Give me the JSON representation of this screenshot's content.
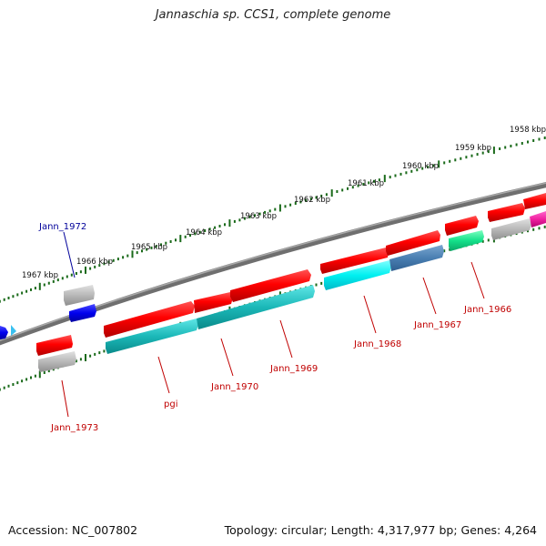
{
  "title": "Jannaschia sp. CCS1, complete genome",
  "footer": {
    "accession": "Accession: NC_007802",
    "summary": "Topology: circular; Length: 4,317,977 bp; Genes: 4,264"
  },
  "colors": {
    "backbone": "#7a7a7a",
    "tick": "#1a6a1a",
    "label_red": "#c00000",
    "label_blue": "#00009a"
  },
  "kbp_labels": [
    "1967 kbp",
    "1966 kbp",
    "1965 kbp",
    "1964 kbp",
    "1963 kbp",
    "1962 kbp",
    "1961 kbp",
    "1960 kbp",
    "1959 kbp",
    "1958 kbp"
  ],
  "genes": {
    "jann_1972": "Jann_1972",
    "jann_1973": "Jann_1973",
    "pgi": "pgi",
    "jann_1970": "Jann_1970",
    "jann_1969": "Jann_1969",
    "jann_1968": "Jann_1968",
    "jann_1967": "Jann_1967",
    "jann_1966": "Jann_1966"
  }
}
